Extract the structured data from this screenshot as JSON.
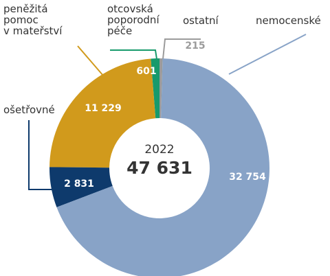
{
  "chart_data": {
    "type": "donut",
    "categories": [
      "ostatní",
      "nemocenské",
      "ošetřovné",
      "peněžitá\npomoc\nv mateřství",
      "otcovská\npoporodní\npéče"
    ],
    "values": [
      215,
      32754,
      2831,
      11229,
      601
    ],
    "value_labels": [
      "215",
      "32 754",
      "2 831",
      "11 229",
      "601"
    ],
    "colors": [
      "#9b9b9b",
      "#88a3c7",
      "#0e3a6c",
      "#d19a1c",
      "#179a6c"
    ],
    "center_title": "2022",
    "total": 47631,
    "total_label": "47 631"
  }
}
